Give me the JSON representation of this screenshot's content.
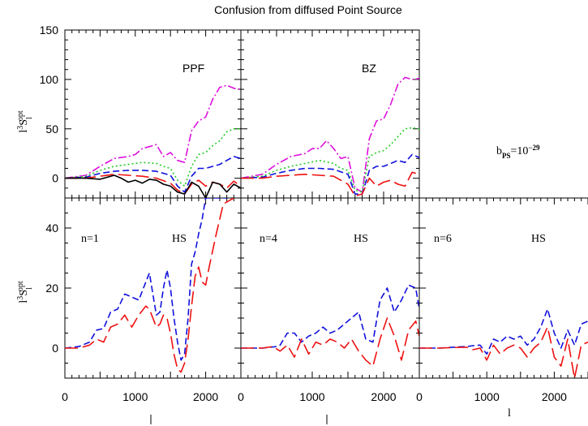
{
  "title": "Confusion from diffused Point Source",
  "annotation_bps": "b_PS=10^-29",
  "xlabel": "l",
  "ylabel": "l^3 S_l^opt",
  "colors": {
    "black": "#000000",
    "red": "#ee1111",
    "green": "#22cc22",
    "blue": "#1111dd",
    "magenta": "#dd11dd"
  },
  "chart_data": [
    {
      "type": "line",
      "panel": "PPF",
      "label": "PPF",
      "xlim": [
        0,
        2500
      ],
      "ylim": [
        -20,
        150
      ],
      "yticks": [
        0,
        50,
        100,
        150
      ],
      "grid": false,
      "series": [
        {
          "color": "magenta",
          "dash": "dashdot",
          "x": [
            0,
            300,
            500,
            700,
            900,
            1000,
            1100,
            1200,
            1300,
            1400,
            1500,
            1600,
            1700,
            1800,
            1900,
            2000,
            2100,
            2200,
            2300,
            2400,
            2500
          ],
          "y": [
            0,
            3,
            12,
            20,
            22,
            24,
            30,
            32,
            34,
            22,
            26,
            18,
            16,
            48,
            58,
            62,
            80,
            92,
            94,
            91,
            90
          ]
        },
        {
          "color": "green",
          "dash": "dotted",
          "x": [
            0,
            300,
            500,
            700,
            900,
            1100,
            1300,
            1400,
            1500,
            1600,
            1700,
            1800,
            1900,
            2000,
            2100,
            2200,
            2300,
            2400,
            2500
          ],
          "y": [
            0,
            2,
            8,
            12,
            14,
            16,
            15,
            12,
            10,
            -2,
            -8,
            12,
            24,
            26,
            33,
            38,
            47,
            50,
            50
          ]
        },
        {
          "color": "blue",
          "dash": "dashed",
          "x": [
            0,
            300,
            500,
            700,
            900,
            1100,
            1300,
            1500,
            1600,
            1700,
            1800,
            1900,
            2000,
            2100,
            2200,
            2300,
            2400,
            2500
          ],
          "y": [
            0,
            1,
            5,
            7,
            8,
            8,
            7,
            3,
            -8,
            -14,
            2,
            10,
            10,
            12,
            14,
            18,
            22,
            20
          ]
        },
        {
          "color": "red",
          "dash": "longdash",
          "x": [
            0,
            300,
            500,
            700,
            900,
            1100,
            1300,
            1500,
            1600,
            1700,
            1800,
            1900,
            2000,
            2100,
            2200,
            2300,
            2400,
            2500
          ],
          "y": [
            0,
            0,
            2,
            4,
            3,
            2,
            0,
            -5,
            -12,
            -16,
            -6,
            -2,
            -8,
            -4,
            -6,
            -10,
            -3,
            -8
          ]
        },
        {
          "color": "black",
          "dash": "solid",
          "x": [
            0,
            300,
            500,
            700,
            800,
            900,
            1000,
            1100,
            1200,
            1300,
            1400,
            1500,
            1600,
            1700,
            1800,
            1900,
            2000,
            2100,
            2200,
            2300,
            2400,
            2500
          ],
          "y": [
            0,
            0,
            -1,
            3,
            0,
            -4,
            -2,
            -5,
            -1,
            -2,
            -6,
            -8,
            -14,
            -16,
            -4,
            -8,
            -20,
            -4,
            -6,
            -14,
            -6,
            -10
          ]
        }
      ]
    },
    {
      "type": "line",
      "panel": "BZ",
      "label": "BZ",
      "xlim": [
        0,
        2500
      ],
      "ylim": [
        -20,
        150
      ],
      "grid": false,
      "series": [
        {
          "color": "magenta",
          "dash": "dashdot",
          "x": [
            0,
            300,
            500,
            700,
            900,
            1000,
            1100,
            1200,
            1300,
            1400,
            1500,
            1600,
            1700,
            1800,
            1900,
            2000,
            2100,
            2200,
            2300,
            2400,
            2500
          ],
          "y": [
            0,
            4,
            14,
            22,
            25,
            30,
            30,
            38,
            30,
            20,
            22,
            -10,
            -14,
            40,
            58,
            60,
            75,
            95,
            102,
            100,
            101
          ]
        },
        {
          "color": "green",
          "dash": "dotted",
          "x": [
            0,
            300,
            500,
            700,
            900,
            1100,
            1300,
            1400,
            1500,
            1600,
            1700,
            1800,
            1900,
            2000,
            2100,
            2200,
            2300,
            2400,
            2500
          ],
          "y": [
            0,
            2,
            8,
            12,
            15,
            18,
            15,
            10,
            8,
            -12,
            -14,
            22,
            26,
            28,
            34,
            42,
            50,
            51,
            50
          ]
        },
        {
          "color": "blue",
          "dash": "dashed",
          "x": [
            0,
            300,
            500,
            700,
            900,
            1100,
            1300,
            1500,
            1600,
            1700,
            1800,
            1900,
            2000,
            2100,
            2200,
            2300,
            2400,
            2500
          ],
          "y": [
            0,
            1,
            5,
            8,
            10,
            10,
            9,
            4,
            -16,
            -16,
            8,
            12,
            12,
            15,
            18,
            16,
            24,
            21
          ]
        },
        {
          "color": "red",
          "dash": "longdash",
          "x": [
            0,
            300,
            500,
            700,
            900,
            1100,
            1300,
            1500,
            1600,
            1700,
            1800,
            1900,
            2000,
            2100,
            2200,
            2300,
            2400,
            2500
          ],
          "y": [
            0,
            0,
            2,
            3,
            4,
            3,
            2,
            -6,
            -18,
            -16,
            0,
            -8,
            -4,
            -2,
            -6,
            -8,
            6,
            4
          ]
        }
      ]
    },
    {
      "type": "line",
      "panel": "n=1",
      "label": "n=1",
      "model": "HS",
      "xlim": [
        0,
        2500
      ],
      "ylim": [
        -10,
        50
      ],
      "yticks": [
        0,
        20,
        40
      ],
      "xticks": [
        0,
        1000,
        2000
      ],
      "grid": false,
      "series": [
        {
          "color": "blue",
          "dash": "dashed",
          "x": [
            0,
            200,
            350,
            450,
            550,
            650,
            750,
            850,
            950,
            1050,
            1150,
            1200,
            1300,
            1350,
            1400,
            1450,
            1500,
            1550,
            1600,
            1650,
            1700,
            1750,
            1800,
            1850,
            1900,
            1950,
            2000,
            2100,
            2200,
            2300
          ],
          "y": [
            0,
            0.5,
            2,
            6,
            6.5,
            12,
            13,
            18,
            17,
            16,
            22,
            25,
            11,
            12,
            20,
            26,
            20,
            10,
            2,
            -4,
            -2,
            10,
            28,
            32,
            38,
            43,
            50,
            50,
            50,
            50
          ]
        },
        {
          "color": "red",
          "dash": "longdash",
          "x": [
            0,
            200,
            350,
            450,
            550,
            650,
            750,
            850,
            950,
            1050,
            1150,
            1200,
            1300,
            1350,
            1400,
            1450,
            1500,
            1550,
            1600,
            1650,
            1700,
            1750,
            1800,
            1850,
            1900,
            1950,
            2000,
            2050,
            2150,
            2250,
            2400
          ],
          "y": [
            0,
            0,
            1,
            3,
            2,
            7,
            8,
            11,
            7,
            11,
            14,
            13,
            7,
            8,
            11,
            10,
            5,
            -2,
            -7,
            -8,
            -5,
            3,
            14,
            24,
            27,
            22,
            21,
            27,
            38,
            48,
            50
          ]
        }
      ]
    },
    {
      "type": "line",
      "panel": "n=4",
      "label": "n=4",
      "model": "HS",
      "xlim": [
        0,
        2500
      ],
      "ylim": [
        -10,
        50
      ],
      "xticks": [
        0,
        1000,
        2000
      ],
      "grid": false,
      "series": [
        {
          "color": "blue",
          "dash": "dashed",
          "x": [
            0,
            300,
            500,
            550,
            650,
            750,
            850,
            950,
            1050,
            1150,
            1250,
            1350,
            1450,
            1550,
            1650,
            1750,
            1850,
            1950,
            2050,
            2150,
            2250,
            2350,
            2450,
            2500
          ],
          "y": [
            0,
            0,
            0.5,
            1,
            5,
            5,
            2,
            4,
            5,
            7,
            5,
            6,
            8,
            10,
            12,
            3,
            2,
            16,
            20,
            12,
            16,
            21,
            20,
            13
          ]
        },
        {
          "color": "red",
          "dash": "longdash",
          "x": [
            0,
            300,
            450,
            550,
            650,
            750,
            850,
            950,
            1050,
            1150,
            1250,
            1350,
            1450,
            1550,
            1650,
            1750,
            1850,
            1950,
            2050,
            2150,
            2250,
            2350,
            2450,
            2500
          ],
          "y": [
            0,
            0,
            0.5,
            -1,
            1,
            -3,
            3,
            -2,
            2,
            1,
            3,
            2,
            0,
            3,
            -1,
            -4,
            -6,
            3,
            10,
            4,
            -4,
            6,
            9,
            4
          ]
        }
      ]
    },
    {
      "type": "line",
      "panel": "n=6",
      "label": "n=6",
      "model": "HS",
      "xlim": [
        0,
        2500
      ],
      "ylim": [
        -10,
        50
      ],
      "xticks": [
        0,
        1000,
        2000
      ],
      "grid": false,
      "series": [
        {
          "color": "blue",
          "dash": "dashed",
          "x": [
            0,
            300,
            500,
            700,
            800,
            900,
            1000,
            1100,
            1200,
            1300,
            1400,
            1500,
            1600,
            1700,
            1800,
            1900,
            2000,
            2100,
            2200,
            2300,
            2400,
            2500
          ],
          "y": [
            0,
            0,
            0.3,
            0.5,
            0.8,
            1,
            -2,
            3,
            2,
            4,
            3,
            4,
            1,
            3,
            7,
            13,
            5,
            0,
            6,
            1,
            8,
            9
          ]
        },
        {
          "color": "red",
          "dash": "longdash",
          "x": [
            0,
            300,
            500,
            700,
            800,
            900,
            1000,
            1100,
            1200,
            1300,
            1400,
            1500,
            1600,
            1700,
            1800,
            1900,
            2000,
            2100,
            2200,
            2300,
            2400,
            2500
          ],
          "y": [
            0,
            0,
            0.2,
            0.3,
            -0.5,
            0,
            -4,
            1,
            -2,
            0,
            1,
            0,
            -3,
            0,
            2,
            7,
            -3,
            -6,
            3,
            -10,
            1,
            2
          ]
        }
      ]
    }
  ]
}
